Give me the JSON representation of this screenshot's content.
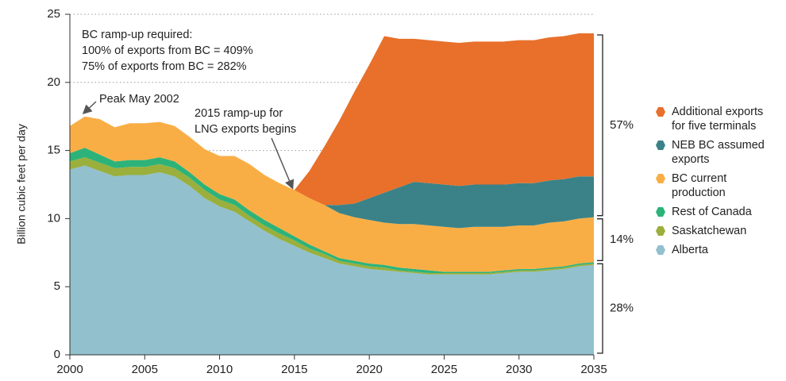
{
  "chart_data": {
    "type": "stacked_area",
    "y_label": "Billion cubic feet per day",
    "annotations": {
      "ramp_up": [
        "BC ramp-up required:",
        "100% of exports from BC = 409%",
        "75% of exports from BC = 282%"
      ],
      "peak": "Peak May 2002",
      "lng": [
        "2015 ramp-up for",
        "LNG exports begins"
      ]
    },
    "x": [
      2000,
      2001,
      2002,
      2003,
      2004,
      2005,
      2006,
      2007,
      2008,
      2009,
      2010,
      2011,
      2012,
      2013,
      2014,
      2015,
      2016,
      2017,
      2018,
      2019,
      2020,
      2021,
      2022,
      2023,
      2024,
      2025,
      2026,
      2027,
      2028,
      2029,
      2030,
      2031,
      2032,
      2033,
      2034,
      2035
    ],
    "xlim": [
      2000,
      2035
    ],
    "xticks": [
      2000,
      2005,
      2010,
      2015,
      2020,
      2025,
      2030,
      2035
    ],
    "ylim": [
      0,
      25
    ],
    "yticks": [
      0,
      5,
      10,
      15,
      20,
      25
    ],
    "grid": true,
    "series": [
      {
        "name": "Alberta",
        "color": "#92c0cd",
        "values": [
          13.6,
          13.9,
          13.5,
          13.1,
          13.2,
          13.2,
          13.4,
          13.1,
          12.4,
          11.5,
          10.9,
          10.5,
          9.8,
          9.1,
          8.5,
          8.0,
          7.5,
          7.1,
          6.7,
          6.5,
          6.3,
          6.2,
          6.1,
          6.0,
          5.9,
          5.9,
          5.9,
          5.9,
          5.9,
          6.0,
          6.1,
          6.1,
          6.2,
          6.3,
          6.5,
          6.6
        ]
      },
      {
        "name": "Saskatchewan",
        "color": "#9aaf3c",
        "values": [
          0.6,
          0.6,
          0.6,
          0.6,
          0.6,
          0.6,
          0.6,
          0.6,
          0.6,
          0.6,
          0.5,
          0.5,
          0.4,
          0.4,
          0.4,
          0.4,
          0.3,
          0.3,
          0.2,
          0.2,
          0.2,
          0.2,
          0.1,
          0.1,
          0.1,
          0.1,
          0.1,
          0.1,
          0.1,
          0.1,
          0.1,
          0.1,
          0.1,
          0.1,
          0.1,
          0.1
        ]
      },
      {
        "name": "Rest of Canada",
        "color": "#2db37a",
        "values": [
          0.6,
          0.7,
          0.6,
          0.5,
          0.5,
          0.5,
          0.5,
          0.5,
          0.4,
          0.4,
          0.4,
          0.4,
          0.4,
          0.4,
          0.4,
          0.3,
          0.3,
          0.2,
          0.2,
          0.2,
          0.2,
          0.2,
          0.2,
          0.2,
          0.2,
          0.1,
          0.1,
          0.1,
          0.1,
          0.1,
          0.1,
          0.1,
          0.1,
          0.1,
          0.1,
          0.1
        ]
      },
      {
        "name": "BC current production",
        "color": "#f9ae45",
        "values": [
          2.0,
          2.3,
          2.6,
          2.5,
          2.7,
          2.7,
          2.6,
          2.6,
          2.6,
          2.6,
          2.8,
          3.2,
          3.4,
          3.3,
          3.3,
          3.4,
          3.4,
          3.4,
          3.3,
          3.2,
          3.2,
          3.1,
          3.2,
          3.3,
          3.3,
          3.3,
          3.2,
          3.3,
          3.3,
          3.2,
          3.2,
          3.2,
          3.3,
          3.3,
          3.3,
          3.3
        ]
      },
      {
        "name": "NEB BC assumed exports",
        "color": "#3a8288",
        "values": [
          0,
          0,
          0,
          0,
          0,
          0,
          0,
          0,
          0,
          0,
          0,
          0,
          0,
          0,
          0,
          0,
          0,
          0,
          0.6,
          1.0,
          1.6,
          2.2,
          2.7,
          3.1,
          3.1,
          3.1,
          3.1,
          3.1,
          3.1,
          3.1,
          3.1,
          3.1,
          3.1,
          3.1,
          3.1,
          3.0
        ]
      },
      {
        "name": "Additional exports for five terminals",
        "color": "#e8702a",
        "values": [
          0,
          0,
          0,
          0,
          0,
          0,
          0,
          0,
          0,
          0,
          0,
          0,
          0,
          0,
          0,
          0,
          2.0,
          4.3,
          6.2,
          8.2,
          9.8,
          11.5,
          10.9,
          10.5,
          10.5,
          10.5,
          10.5,
          10.5,
          10.5,
          10.5,
          10.5,
          10.5,
          10.5,
          10.5,
          10.5,
          10.5
        ]
      }
    ],
    "brackets": [
      "57%",
      "14%",
      "28%"
    ]
  }
}
